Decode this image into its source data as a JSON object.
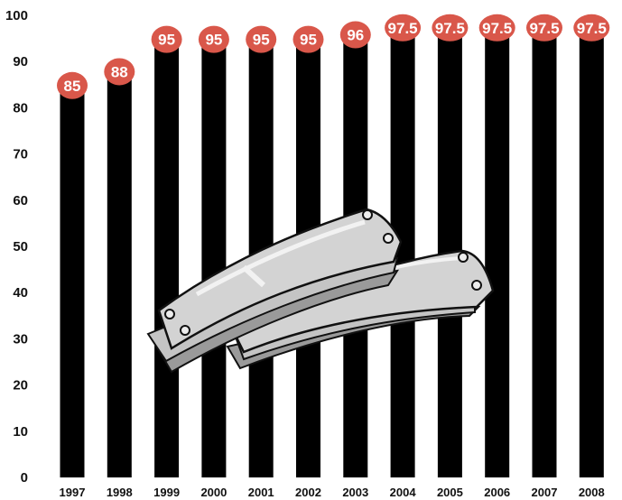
{
  "chart_data": {
    "type": "bar",
    "categories": [
      "1997",
      "1998",
      "1999",
      "2000",
      "2001",
      "2002",
      "2003",
      "2004",
      "2005",
      "2006",
      "2007",
      "2008"
    ],
    "values": [
      85,
      88,
      95,
      95,
      95,
      95,
      96,
      97.5,
      97.5,
      97.5,
      97.5,
      97.5
    ],
    "data_labels": [
      "85",
      "88",
      "95",
      "95",
      "95",
      "95",
      "96",
      "97.5",
      "97.5",
      "97.5",
      "97.5",
      "97.5"
    ],
    "y_ticks": [
      "0",
      "10",
      "20",
      "30",
      "40",
      "50",
      "60",
      "70",
      "80",
      "90",
      "100"
    ],
    "ylim": [
      0,
      100
    ],
    "grid": false,
    "legend": "none",
    "colors": {
      "bar": "#000000",
      "label_bubble": "#d9574a",
      "label_text": "#ffffff",
      "illustration_fill": "#d3d3d3",
      "illustration_shadow": "#9a9a9a",
      "illustration_highlight": "#f2f2f2",
      "illustration_outline": "#111111"
    }
  },
  "illustration": {
    "icon": "leaf-spring-icon"
  }
}
